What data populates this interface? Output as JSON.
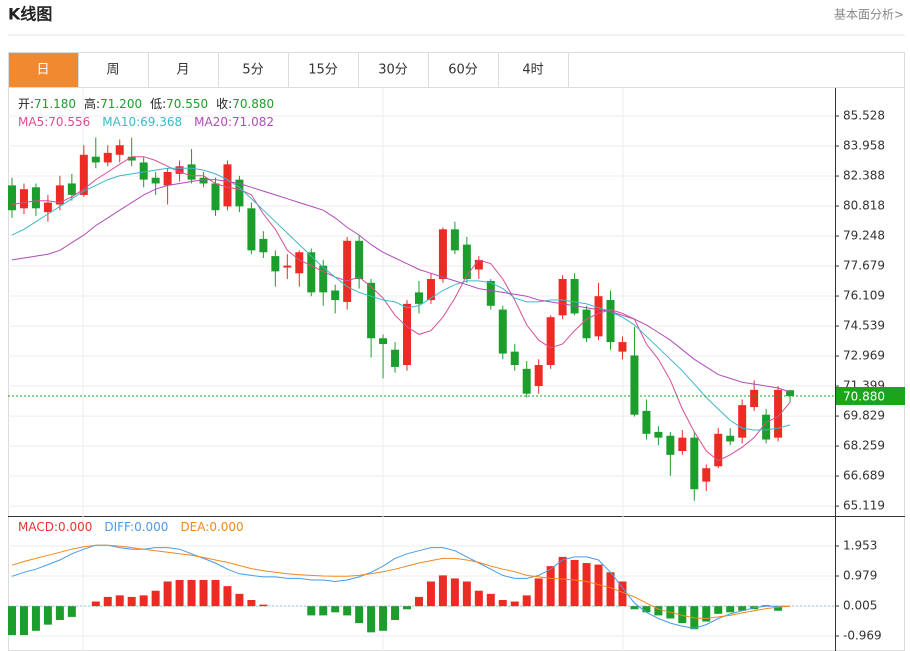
{
  "header": {
    "title": "K线图",
    "link": "基本面分析>"
  },
  "tabs": [
    "日",
    "周",
    "月",
    "5分",
    "15分",
    "30分",
    "60分",
    "4时"
  ],
  "active_tab": 0,
  "chart_data": [
    {
      "type": "candlestick",
      "quote": [
        {
          "name": "开:",
          "value": "71.180"
        },
        {
          "name": "高:",
          "value": "71.200"
        },
        {
          "name": "低:",
          "value": "70.550"
        },
        {
          "name": "收:",
          "value": "70.880"
        }
      ],
      "up_color": "#ee2a24",
      "down_color": "#1c9e2c",
      "open": [
        81.9,
        80.7,
        81.8,
        80.5,
        80.9,
        82.0,
        81.4,
        83.4,
        83.1,
        83.5,
        83.4,
        83.1,
        82.3,
        81.9,
        82.5,
        83.0,
        82.3,
        82.0,
        80.8,
        82.2,
        80.7,
        79.1,
        78.2,
        77.6,
        77.3,
        78.4,
        77.7,
        76.4,
        75.8,
        79.0,
        76.8,
        73.9,
        73.3,
        72.5,
        76.3,
        75.9,
        77.0,
        79.6,
        78.8,
        77.5,
        76.9,
        75.4,
        73.2,
        72.3,
        71.4,
        72.5,
        75.1,
        77.0,
        75.4,
        74.0,
        75.9,
        73.2,
        73.0,
        70.1,
        69.0,
        68.8,
        68.0,
        68.7,
        66.4,
        67.2,
        68.8,
        68.7,
        70.3,
        69.9,
        68.7,
        71.18
      ],
      "high": [
        82.3,
        82.0,
        82.0,
        81.4,
        82.4,
        82.5,
        84.0,
        84.4,
        84.0,
        84.3,
        84.4,
        83.4,
        82.6,
        82.8,
        83.2,
        83.8,
        82.6,
        82.3,
        83.2,
        82.4,
        81.0,
        79.5,
        78.5,
        78.3,
        78.5,
        78.6,
        78.0,
        76.7,
        79.2,
        79.3,
        77.0,
        74.1,
        73.7,
        75.9,
        76.9,
        77.3,
        79.7,
        80.0,
        79.2,
        78.2,
        77.0,
        75.6,
        73.6,
        72.7,
        72.8,
        75.1,
        77.2,
        77.3,
        75.6,
        76.8,
        76.4,
        74.0,
        74.5,
        70.7,
        69.3,
        69.0,
        69.1,
        69.0,
        67.3,
        69.2,
        69.2,
        70.7,
        71.7,
        70.2,
        71.4,
        71.2
      ],
      "low": [
        80.2,
        80.4,
        80.3,
        80.0,
        80.6,
        81.1,
        81.3,
        82.8,
        82.9,
        83.1,
        82.9,
        81.8,
        81.4,
        80.9,
        82.1,
        82.0,
        81.8,
        80.3,
        80.6,
        80.5,
        78.3,
        78.1,
        76.6,
        77.0,
        76.6,
        76.1,
        75.6,
        75.2,
        75.4,
        76.5,
        72.9,
        71.8,
        72.1,
        72.2,
        75.2,
        75.7,
        76.8,
        78.3,
        76.8,
        77.0,
        75.4,
        72.8,
        72.2,
        70.8,
        71.0,
        72.3,
        74.9,
        75.1,
        73.7,
        73.8,
        73.3,
        72.8,
        69.8,
        68.6,
        68.3,
        66.7,
        67.8,
        65.4,
        65.9,
        67.1,
        68.3,
        68.4,
        70.1,
        68.4,
        68.5,
        70.55
      ],
      "close": [
        80.6,
        81.7,
        80.7,
        81.0,
        81.9,
        81.4,
        83.5,
        83.1,
        83.6,
        84.0,
        83.2,
        82.2,
        82.0,
        82.6,
        82.9,
        82.2,
        82.0,
        80.6,
        83.0,
        80.8,
        78.5,
        78.4,
        77.4,
        77.7,
        78.4,
        76.3,
        76.3,
        75.9,
        79.0,
        77.0,
        73.9,
        73.6,
        72.4,
        75.7,
        75.7,
        77.0,
        79.6,
        78.5,
        77.0,
        78.0,
        75.6,
        73.1,
        72.5,
        71.0,
        72.5,
        75.0,
        77.0,
        75.2,
        73.9,
        76.1,
        73.7,
        73.7,
        69.9,
        68.9,
        68.7,
        67.8,
        68.7,
        66.0,
        67.1,
        68.9,
        68.5,
        70.4,
        71.2,
        68.6,
        71.2,
        70.88
      ],
      "series": [
        {
          "name": "MA5:",
          "legend_value": "70.556",
          "color": "#d64f95",
          "values": [
            80.9,
            81.0,
            81.1,
            81.1,
            81.0,
            81.3,
            81.7,
            82.2,
            82.6,
            83.0,
            83.4,
            83.4,
            83.2,
            82.9,
            82.6,
            82.4,
            82.4,
            82.0,
            81.8,
            81.7,
            81.4,
            80.4,
            79.6,
            78.5,
            78.0,
            77.7,
            77.4,
            77.1,
            76.9,
            77.1,
            76.6,
            76.0,
            75.1,
            74.5,
            74.1,
            74.3,
            75.0,
            76.0,
            77.2,
            78.0,
            77.8,
            77.0,
            75.9,
            74.6,
            73.8,
            73.4,
            73.6,
            74.3,
            74.9,
            75.2,
            75.4,
            75.2,
            74.9,
            73.6,
            72.8,
            71.7,
            70.2,
            69.0,
            68.0,
            67.5,
            67.8,
            68.2,
            68.7,
            69.5,
            69.8,
            70.556
          ]
        },
        {
          "name": "MA10:",
          "legend_value": "69.368",
          "color": "#3cb8c8",
          "values": [
            79.3,
            79.6,
            80.0,
            80.4,
            80.8,
            81.2,
            81.6,
            81.9,
            82.2,
            82.4,
            82.5,
            82.6,
            82.7,
            82.8,
            82.8,
            82.8,
            82.7,
            82.5,
            82.2,
            81.8,
            81.2,
            80.6,
            80.0,
            79.4,
            78.8,
            78.2,
            77.6,
            77.1,
            76.6,
            76.3,
            76.1,
            75.9,
            75.8,
            75.5,
            75.6,
            76.0,
            76.4,
            76.7,
            76.9,
            76.9,
            76.8,
            76.5,
            76.0,
            75.8,
            75.8,
            75.9,
            75.9,
            75.8,
            75.7,
            75.5,
            75.3,
            75.0,
            74.6,
            74.0,
            73.4,
            72.8,
            72.2,
            71.5,
            70.8,
            70.2,
            69.6,
            69.2,
            69.1,
            69.1,
            69.2,
            69.368
          ]
        },
        {
          "name": "MA20:",
          "legend_value": "71.082",
          "color": "#b04cb8",
          "values": [
            78.0,
            78.1,
            78.2,
            78.3,
            78.5,
            78.9,
            79.3,
            79.8,
            80.2,
            80.6,
            81.0,
            81.4,
            81.7,
            81.9,
            82.0,
            82.1,
            82.2,
            82.2,
            82.1,
            82.0,
            81.8,
            81.6,
            81.4,
            81.2,
            81.0,
            80.8,
            80.6,
            80.2,
            79.7,
            79.3,
            78.8,
            78.4,
            78.1,
            77.8,
            77.5,
            77.3,
            77.1,
            76.9,
            76.7,
            76.5,
            76.4,
            76.3,
            76.2,
            76.1,
            75.9,
            75.8,
            75.7,
            75.6,
            75.5,
            75.4,
            75.3,
            75.1,
            74.9,
            74.6,
            74.2,
            73.8,
            73.3,
            72.8,
            72.4,
            72.0,
            71.8,
            71.6,
            71.5,
            71.4,
            71.3,
            71.082
          ]
        }
      ],
      "price_line": {
        "value": 70.88,
        "label": "70.880",
        "color": "#1aa51a"
      },
      "ylim": [
        64.6,
        86.89
      ],
      "yticks": [
        85.528,
        83.958,
        82.388,
        80.818,
        79.248,
        77.679,
        76.109,
        74.539,
        72.969,
        71.399,
        69.829,
        68.259,
        66.689,
        65.119
      ],
      "grid": true
    },
    {
      "type": "macd",
      "up_color": "#ee2a24",
      "down_color": "#1c9e2c",
      "histogram": {
        "name": "MACD:",
        "legend_value": "0.000",
        "color": "#e8352f",
        "values": [
          -0.94,
          -0.94,
          -0.8,
          -0.6,
          -0.45,
          -0.35,
          0.0,
          0.15,
          0.3,
          0.35,
          0.3,
          0.35,
          0.5,
          0.8,
          0.85,
          0.85,
          0.85,
          0.85,
          0.65,
          0.4,
          0.2,
          0.05,
          0,
          0,
          0,
          -0.3,
          -0.3,
          -0.2,
          -0.3,
          -0.55,
          -0.85,
          -0.8,
          -0.45,
          -0.1,
          0.3,
          0.8,
          1.0,
          0.9,
          0.8,
          0.5,
          0.4,
          0.2,
          0.15,
          0.35,
          0.9,
          1.3,
          1.6,
          1.5,
          1.4,
          1.35,
          1.1,
          0.8,
          -0.1,
          -0.2,
          -0.3,
          -0.4,
          -0.55,
          -0.75,
          -0.5,
          -0.25,
          -0.2,
          -0.15,
          -0.1,
          0.03,
          -0.15,
          0.0
        ]
      },
      "series": [
        {
          "name": "DIFF:",
          "legend_value": "0.000",
          "color": "#4a9be6",
          "values": [
            0.97,
            1.1,
            1.2,
            1.35,
            1.5,
            1.7,
            1.85,
            1.98,
            1.98,
            1.9,
            1.85,
            1.85,
            1.9,
            1.9,
            1.85,
            1.7,
            1.55,
            1.4,
            1.2,
            1.05,
            1.0,
            0.95,
            0.95,
            0.9,
            0.9,
            0.85,
            0.85,
            0.8,
            0.85,
            0.95,
            1.1,
            1.3,
            1.55,
            1.7,
            1.8,
            1.9,
            1.9,
            1.8,
            1.6,
            1.4,
            1.2,
            1.0,
            0.9,
            0.9,
            1.0,
            1.2,
            1.5,
            1.6,
            1.6,
            1.5,
            1.1,
            0.6,
            0.1,
            -0.2,
            -0.4,
            -0.55,
            -0.65,
            -0.72,
            -0.6,
            -0.4,
            -0.25,
            -0.15,
            -0.05,
            0.0,
            0.0,
            0.0
          ]
        },
        {
          "name": "DEA:",
          "legend_value": "0.000",
          "color": "#f08a1c",
          "values": [
            1.33,
            1.45,
            1.55,
            1.65,
            1.75,
            1.85,
            1.93,
            1.98,
            1.98,
            1.95,
            1.9,
            1.85,
            1.8,
            1.75,
            1.7,
            1.65,
            1.58,
            1.5,
            1.42,
            1.32,
            1.22,
            1.15,
            1.1,
            1.05,
            1.02,
            1.0,
            0.98,
            0.97,
            0.97,
            1.0,
            1.05,
            1.12,
            1.2,
            1.3,
            1.4,
            1.48,
            1.55,
            1.55,
            1.5,
            1.42,
            1.3,
            1.2,
            1.12,
            1.0,
            0.95,
            0.9,
            0.88,
            0.85,
            0.8,
            0.7,
            0.6,
            0.45,
            0.3,
            0.1,
            -0.1,
            -0.2,
            -0.3,
            -0.38,
            -0.4,
            -0.35,
            -0.3,
            -0.22,
            -0.15,
            -0.08,
            -0.03,
            0.0
          ]
        }
      ],
      "ylim": [
        -1.456,
        2.862
      ],
      "yticks": [
        1.953,
        0.979,
        0.005,
        -0.969
      ],
      "grid": true
    }
  ]
}
